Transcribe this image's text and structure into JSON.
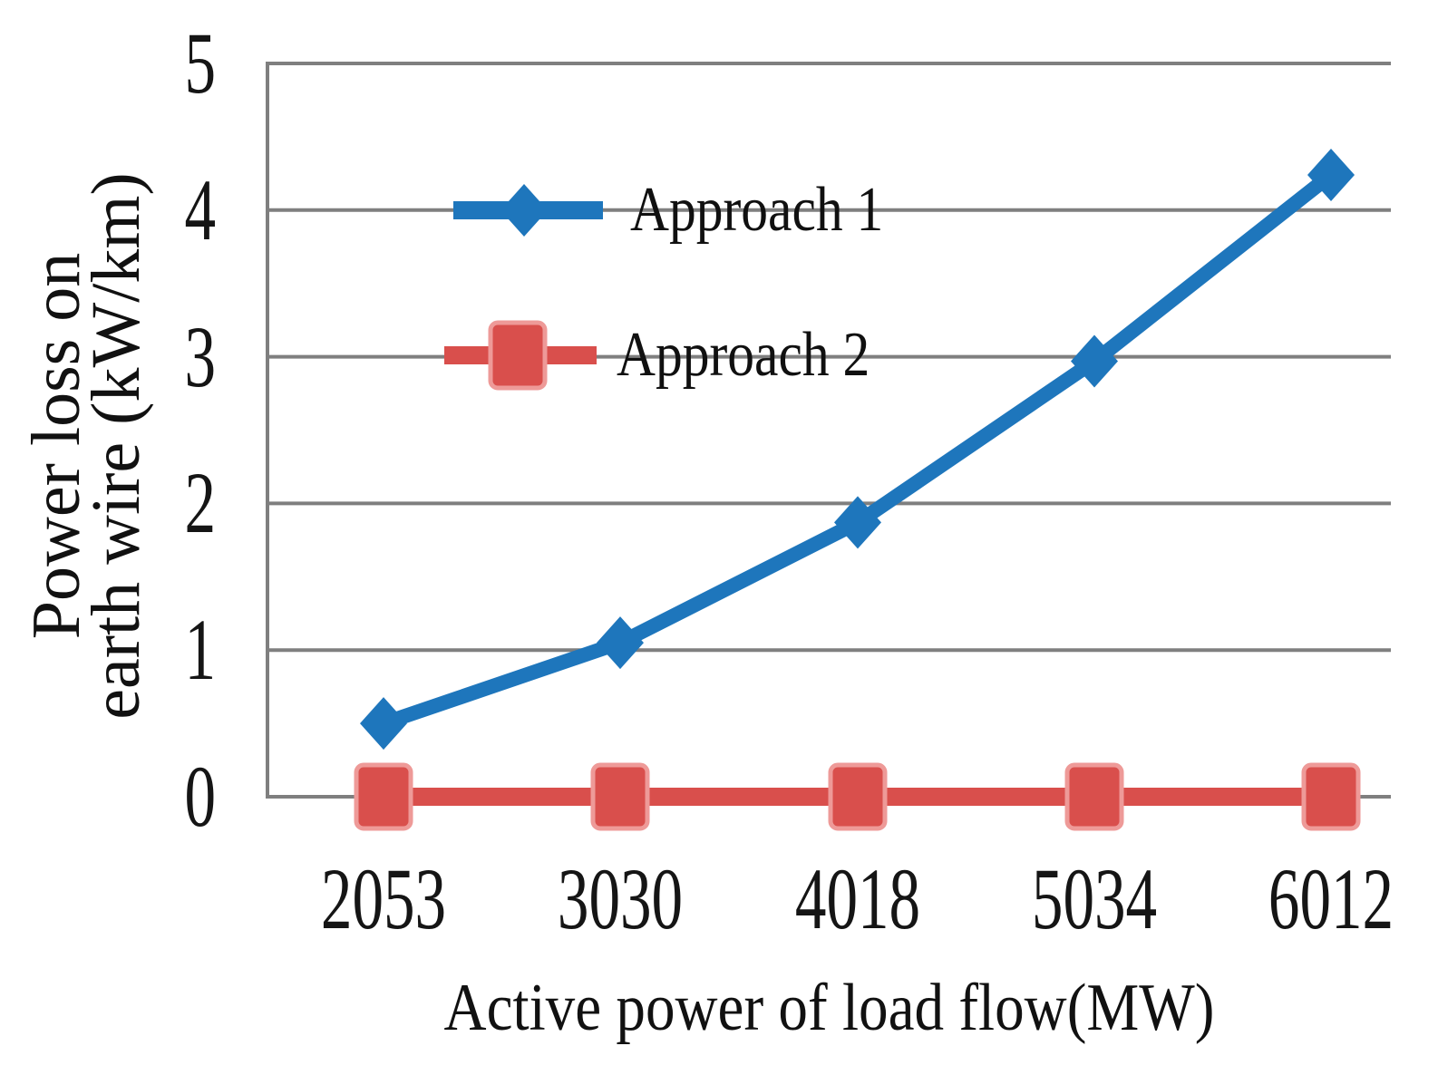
{
  "chart_data": {
    "type": "line",
    "title": "",
    "xlabel": "Active power of load flow(MW)",
    "ylabel_line1": "Power loss on",
    "ylabel_line2": "earth wire (kW/km)",
    "categories": [
      "2053",
      "3030",
      "4018",
      "5034",
      "6012"
    ],
    "series": [
      {
        "name": "Approach 1",
        "values": [
          0.5,
          1.05,
          1.87,
          2.97,
          4.24
        ],
        "color": "#1E76BC",
        "marker": "diamond"
      },
      {
        "name": "Approach 2",
        "values": [
          0,
          0,
          0,
          0,
          0
        ],
        "color": "#D94F4C",
        "marker": "square",
        "marker_halo": "#EE9A98"
      }
    ],
    "yticks": [
      0,
      1,
      2,
      3,
      4,
      5
    ],
    "ylim": [
      0,
      5
    ],
    "grid": true,
    "gridline_color": "#7F7F7F",
    "axis_color": "#7F7F7F",
    "legend_position": "inside-top-left",
    "background": "#FFFFFF"
  }
}
